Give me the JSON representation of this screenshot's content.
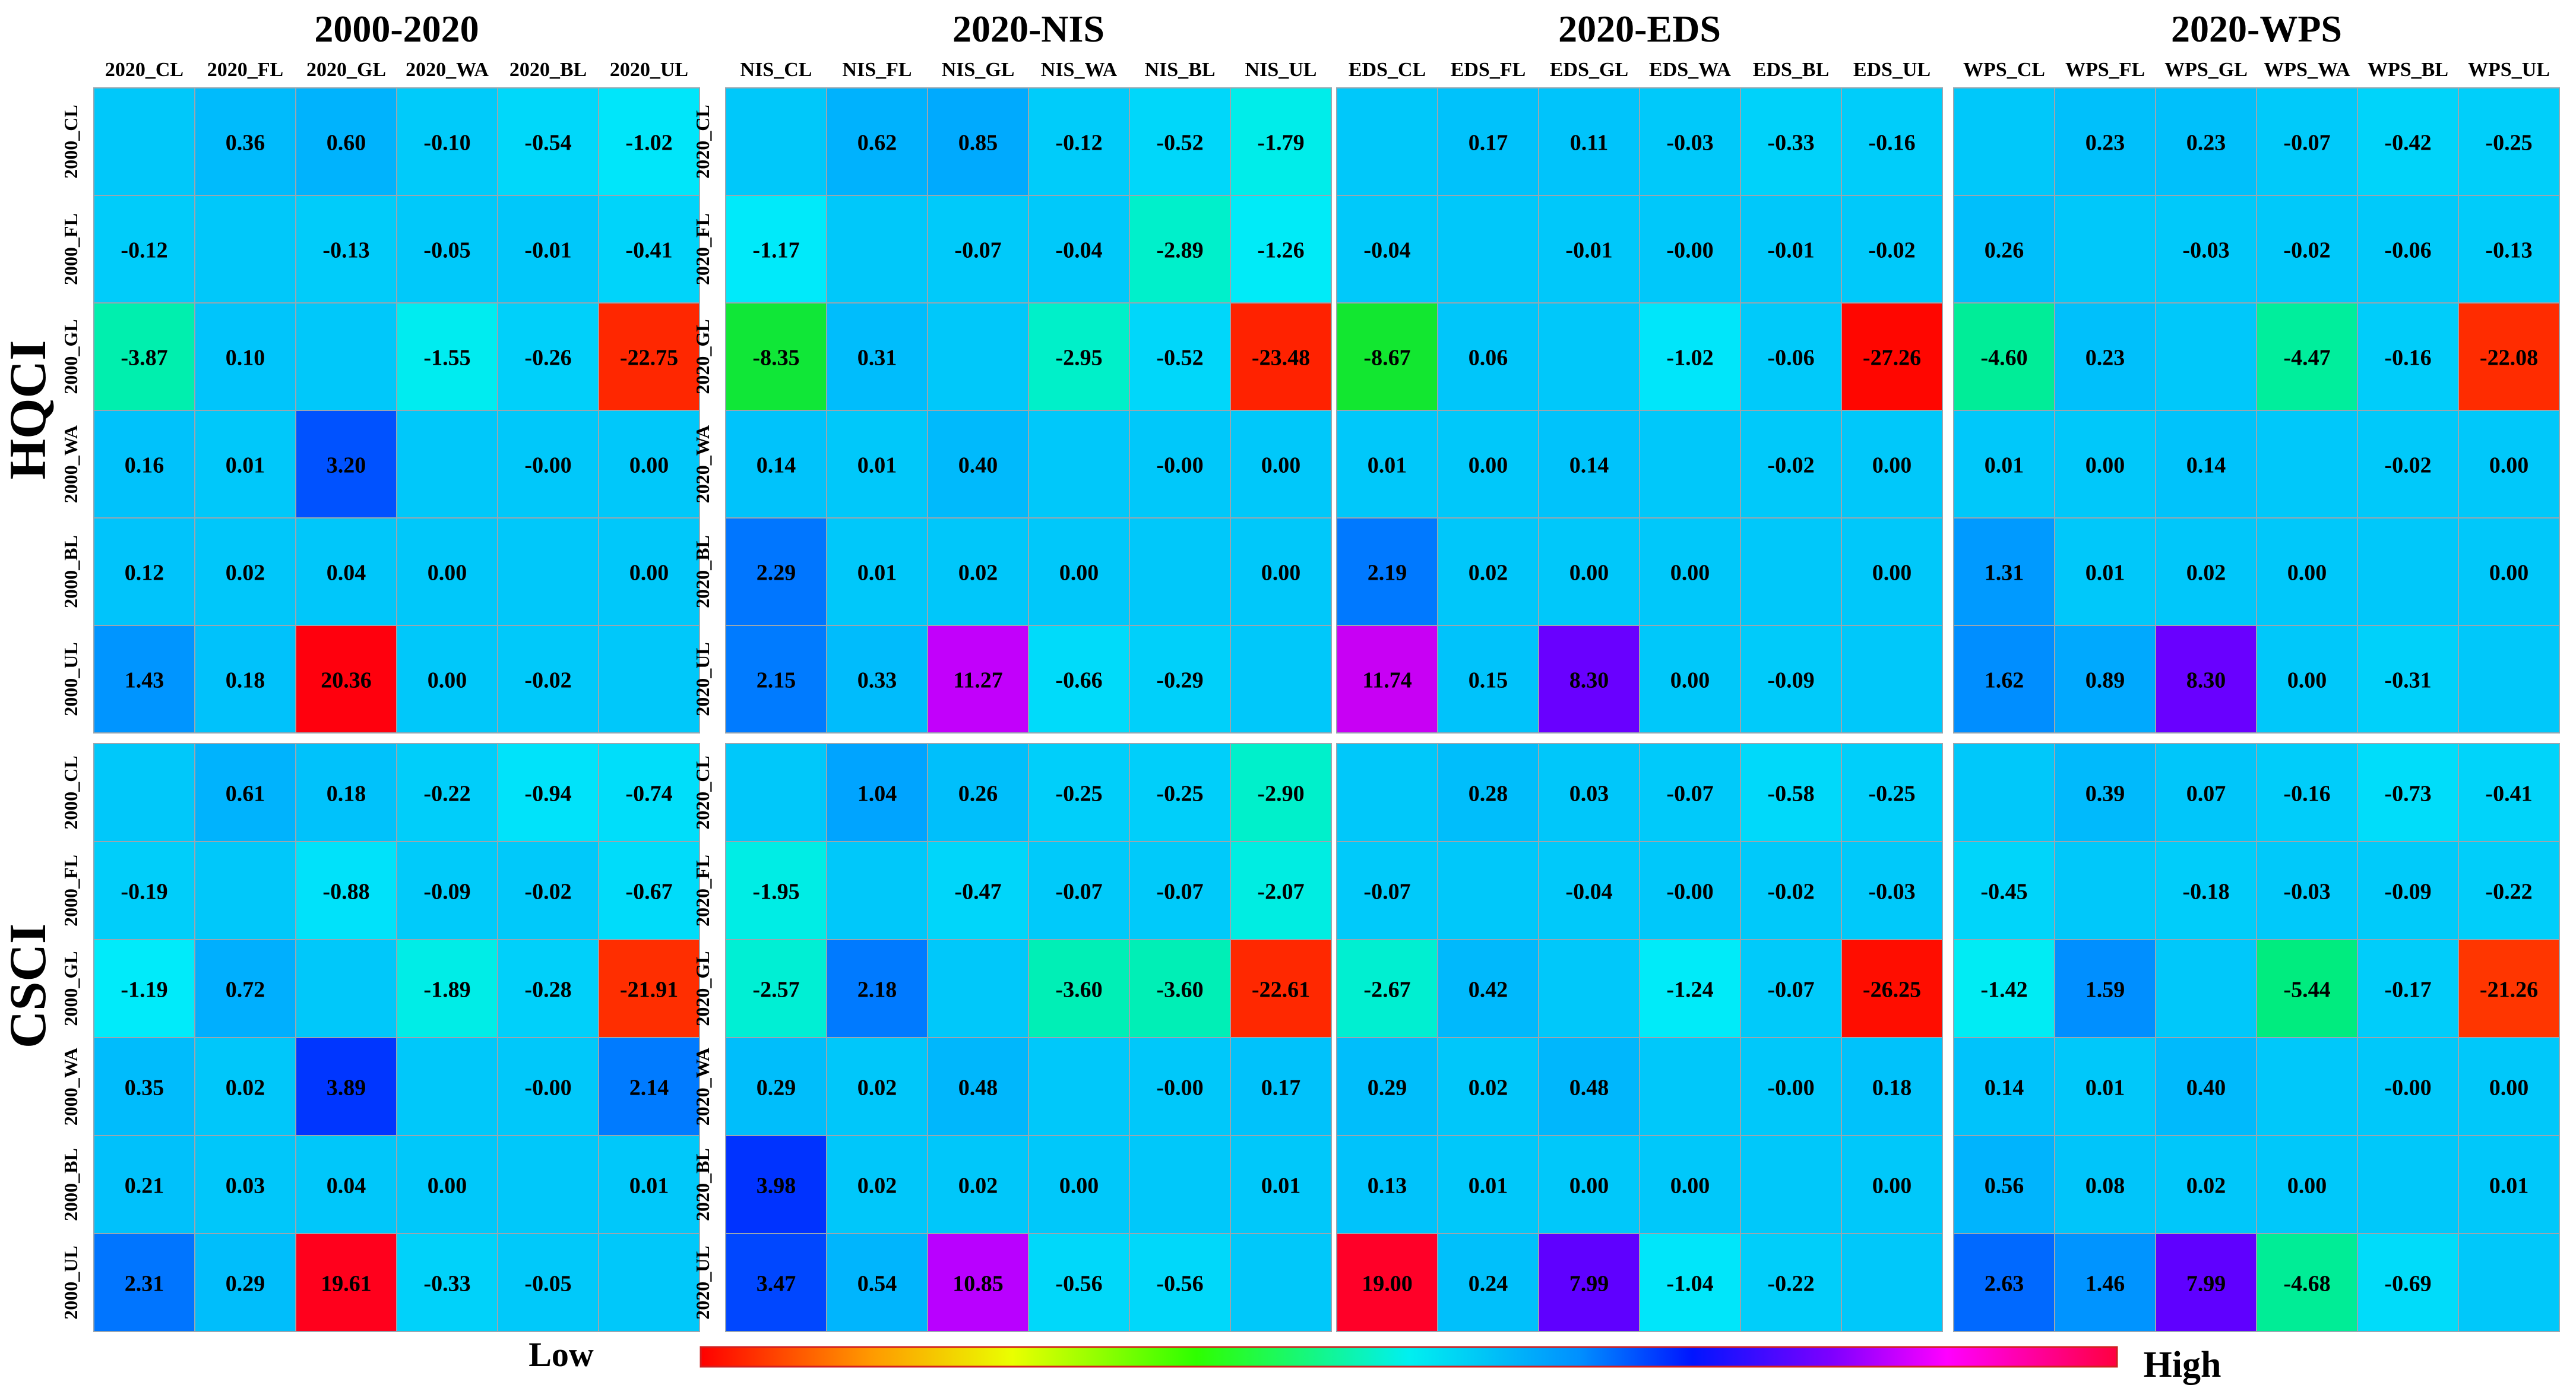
{
  "chart_data": {
    "type": "heatmap",
    "legend": {
      "low_label": "Low",
      "high_label": "High"
    },
    "row_groups": [
      "HQCI",
      "CSCI"
    ],
    "panels": [
      {
        "title": "2000-2020",
        "col_labels": [
          "2020_CL",
          "2020_FL",
          "2020_GL",
          "2020_WA",
          "2020_BL",
          "2020_UL"
        ],
        "row_labels": [
          "2000_CL",
          "2000_FL",
          "2000_GL",
          "2000_WA",
          "2000_BL",
          "2000_UL"
        ],
        "HQCI": [
          [
            null,
            0.36,
            0.6,
            -0.1,
            -0.54,
            -1.02
          ],
          [
            -0.12,
            null,
            -0.13,
            -0.05,
            -0.01,
            -0.41
          ],
          [
            -3.87,
            0.1,
            null,
            -1.55,
            -0.26,
            -22.75
          ],
          [
            0.16,
            0.01,
            3.2,
            null,
            -0.0,
            0.0
          ],
          [
            0.12,
            0.02,
            0.04,
            0.0,
            null,
            0.0
          ],
          [
            1.43,
            0.18,
            20.36,
            0.0,
            -0.02,
            null
          ]
        ],
        "CSCI": [
          [
            null,
            0.61,
            0.18,
            -0.22,
            -0.94,
            -0.74
          ],
          [
            -0.19,
            null,
            -0.88,
            -0.09,
            -0.02,
            -0.67
          ],
          [
            -1.19,
            0.72,
            null,
            -1.89,
            -0.28,
            -21.91
          ],
          [
            0.35,
            0.02,
            3.89,
            null,
            -0.0,
            2.14
          ],
          [
            0.21,
            0.03,
            0.04,
            0.0,
            null,
            0.01
          ],
          [
            2.31,
            0.29,
            19.61,
            -0.33,
            -0.05,
            null
          ]
        ]
      },
      {
        "title": "2020-NIS",
        "col_labels": [
          "NIS_CL",
          "NIS_FL",
          "NIS_GL",
          "NIS_WA",
          "NIS_BL",
          "NIS_UL"
        ],
        "row_labels": [
          "2020_CL",
          "2020_FL",
          "2020_GL",
          "2020_WA",
          "2020_BL",
          "2020_UL"
        ],
        "HQCI": [
          [
            null,
            0.62,
            0.85,
            -0.12,
            -0.52,
            -1.79
          ],
          [
            -1.17,
            null,
            -0.07,
            -0.04,
            -2.89,
            -1.26
          ],
          [
            -8.35,
            0.31,
            null,
            -2.95,
            -0.52,
            -23.48
          ],
          [
            0.14,
            0.01,
            0.4,
            null,
            -0.0,
            0.0
          ],
          [
            2.29,
            0.01,
            0.02,
            0.0,
            null,
            0.0
          ],
          [
            2.15,
            0.33,
            11.27,
            -0.66,
            -0.29,
            null
          ]
        ],
        "CSCI": [
          [
            null,
            1.04,
            0.26,
            -0.25,
            -0.25,
            -2.9
          ],
          [
            -1.95,
            null,
            -0.47,
            -0.07,
            -0.07,
            -2.07
          ],
          [
            -2.57,
            2.18,
            null,
            -3.6,
            -3.6,
            -22.61
          ],
          [
            0.29,
            0.02,
            0.48,
            null,
            -0.0,
            0.17
          ],
          [
            3.98,
            0.02,
            0.02,
            0.0,
            null,
            0.01
          ],
          [
            3.47,
            0.54,
            10.85,
            -0.56,
            -0.56,
            null
          ]
        ]
      },
      {
        "title": "2020-EDS",
        "col_labels": [
          "EDS_CL",
          "EDS_FL",
          "EDS_GL",
          "EDS_WA",
          "EDS_BL",
          "EDS_UL"
        ],
        "row_labels": [],
        "HQCI": [
          [
            null,
            0.17,
            0.11,
            -0.03,
            -0.33,
            -0.16
          ],
          [
            -0.04,
            null,
            -0.01,
            -0.0,
            -0.01,
            -0.02
          ],
          [
            -8.67,
            0.06,
            null,
            -1.02,
            -0.06,
            -27.26
          ],
          [
            0.01,
            0.0,
            0.14,
            null,
            -0.02,
            0.0
          ],
          [
            2.19,
            0.02,
            0.0,
            0.0,
            null,
            0.0
          ],
          [
            11.74,
            0.15,
            8.3,
            0.0,
            -0.09,
            null
          ]
        ],
        "CSCI": [
          [
            null,
            0.28,
            0.03,
            -0.07,
            -0.58,
            -0.25
          ],
          [
            -0.07,
            null,
            -0.04,
            -0.0,
            -0.02,
            -0.03
          ],
          [
            -2.67,
            0.42,
            null,
            -1.24,
            -0.07,
            -26.25
          ],
          [
            0.29,
            0.02,
            0.48,
            null,
            -0.0,
            0.18
          ],
          [
            0.13,
            0.01,
            0.0,
            0.0,
            null,
            0.0
          ],
          [
            19.0,
            0.24,
            7.99,
            -1.04,
            -0.22,
            null
          ]
        ]
      },
      {
        "title": "2020-WPS",
        "col_labels": [
          "WPS_CL",
          "WPS_FL",
          "WPS_GL",
          "WPS_WA",
          "WPS_BL",
          "WPS_UL"
        ],
        "row_labels": [],
        "HQCI": [
          [
            null,
            0.23,
            0.23,
            -0.07,
            -0.42,
            -0.25
          ],
          [
            0.26,
            null,
            -0.03,
            -0.02,
            -0.06,
            -0.13
          ],
          [
            -4.6,
            0.23,
            null,
            -4.47,
            -0.16,
            -22.08
          ],
          [
            0.01,
            0.0,
            0.14,
            null,
            -0.02,
            0.0
          ],
          [
            1.31,
            0.01,
            0.02,
            0.0,
            null,
            0.0
          ],
          [
            1.62,
            0.89,
            8.3,
            0.0,
            -0.31,
            null
          ]
        ],
        "CSCI": [
          [
            null,
            0.39,
            0.07,
            -0.16,
            -0.73,
            -0.41
          ],
          [
            -0.45,
            null,
            -0.18,
            -0.03,
            -0.09,
            -0.22
          ],
          [
            -1.42,
            1.59,
            null,
            -5.44,
            -0.17,
            -21.26
          ],
          [
            0.14,
            0.01,
            0.4,
            null,
            -0.0,
            0.0
          ],
          [
            0.56,
            0.08,
            0.02,
            0.0,
            null,
            0.01
          ],
          [
            2.63,
            1.46,
            7.99,
            -4.68,
            -0.69,
            null
          ]
        ]
      }
    ]
  }
}
